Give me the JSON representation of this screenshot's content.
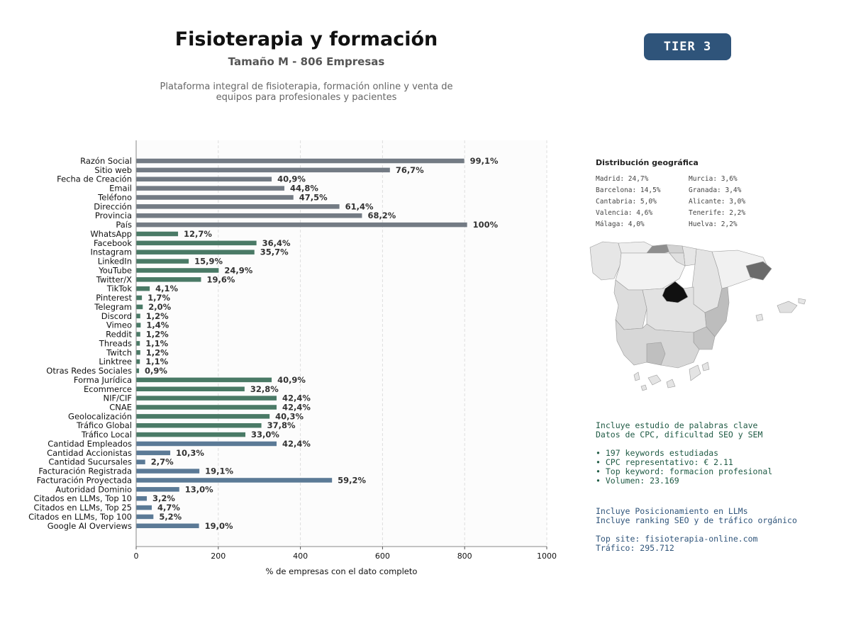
{
  "header": {
    "title": "Fisioterapia y formación",
    "subtitle": "Tamaño M - 806 Empresas",
    "description_line1": "Plataforma integral de fisioterapia, formación online y venta de",
    "description_line2": "equipos para profesionales y pacientes",
    "tier": "TIER 3"
  },
  "colors": {
    "basic": "#737b84",
    "social": "#4a7a66",
    "financial": "#5b7a96",
    "badge": "#2f547a"
  },
  "chart_data": {
    "type": "bar",
    "orientation": "horizontal",
    "xlabel": "% de empresas con el dato completo",
    "xlim": [
      0,
      1000
    ],
    "xticks": [
      0,
      200,
      400,
      600,
      800,
      1000
    ],
    "grid": true,
    "categories": [
      "Razón Social",
      "Sitio web",
      "Fecha de Creación",
      "Email",
      "Teléfono",
      "Dirección",
      "Provincia",
      "País",
      "WhatsApp",
      "Facebook",
      "Instagram",
      "LinkedIn",
      "YouTube",
      "Twitter/X",
      "TikTok",
      "Pinterest",
      "Telegram",
      "Discord",
      "Vimeo",
      "Reddit",
      "Threads",
      "Twitch",
      "Linktree",
      "Otras Redes Sociales",
      "Forma Jurídica",
      "Ecommerce",
      "NIF/CIF",
      "CNAE",
      "Geolocalización",
      "Tráfico Global",
      "Tráfico Local",
      "Cantidad Empleados",
      "Cantidad Accionistas",
      "Cantidad Sucursales",
      "Facturación Registrada",
      "Facturación Proyectada",
      "Autoridad Dominio",
      "Citados en LLMs, Top 10",
      "Citados en LLMs, Top 25",
      "Citados en LLMs, Top 100",
      "Google AI Overviews"
    ],
    "values": [
      799,
      618,
      330,
      361,
      383,
      495,
      550,
      806,
      102,
      293,
      288,
      128,
      201,
      158,
      33,
      14,
      16,
      10,
      11,
      10,
      9,
      10,
      9,
      7,
      330,
      264,
      342,
      342,
      325,
      305,
      266,
      342,
      83,
      22,
      154,
      477,
      105,
      26,
      38,
      42,
      153
    ],
    "labels": [
      "99,1%",
      "76,7%",
      "40,9%",
      "44,8%",
      "47,5%",
      "61,4%",
      "68,2%",
      "100%",
      "12,7%",
      "36,4%",
      "35,7%",
      "15,9%",
      "24,9%",
      "19,6%",
      "4,1%",
      "1,7%",
      "2,0%",
      "1,2%",
      "1,4%",
      "1,2%",
      "1,1%",
      "1,2%",
      "1,1%",
      "0,9%",
      "40,9%",
      "32,8%",
      "42,4%",
      "42,4%",
      "40,3%",
      "37,8%",
      "33,0%",
      "42,4%",
      "10,3%",
      "2,7%",
      "19,1%",
      "59,2%",
      "13,0%",
      "3,2%",
      "4,7%",
      "5,2%",
      "19,0%"
    ],
    "groups": [
      "basic",
      "basic",
      "basic",
      "basic",
      "basic",
      "basic",
      "basic",
      "basic",
      "social",
      "social",
      "social",
      "social",
      "social",
      "social",
      "social",
      "social",
      "social",
      "social",
      "social",
      "social",
      "social",
      "social",
      "social",
      "social",
      "social",
      "social",
      "social",
      "social",
      "social",
      "social",
      "social",
      "financial",
      "financial",
      "financial",
      "financial",
      "financial",
      "financial",
      "financial",
      "financial",
      "financial",
      "financial"
    ]
  },
  "geo": {
    "title": "Distribución geográfica",
    "items": [
      "Madrid: 24,7%",
      "Barcelona: 14,5%",
      "Cantabria: 5,0%",
      "Valencia: 4,6%",
      "Málaga: 4,0%",
      "Murcia: 3,6%",
      "Granada: 3,4%",
      "Alicante: 3,0%",
      "Tenerife: 2,2%",
      "Huelva: 2,2%"
    ]
  },
  "keywords": {
    "line1": "Incluye estudio de palabras clave",
    "line2": "Datos de CPC, dificultad SEO y SEM",
    "bullet1": "• 197 keywords estudiadas",
    "bullet2": "• CPC representativo: € 2.11",
    "bullet3": "• Top keyword: formacion profesional",
    "bullet4": "• Volumen: 23.169"
  },
  "llm": {
    "line1": "Incluye Posicionamiento en LLMs",
    "line2": "Incluye ranking SEO y de tráfico orgánico",
    "top_site": "Top site: fisioterapia-online.com",
    "traffic": "Tráfico: 295.712"
  }
}
